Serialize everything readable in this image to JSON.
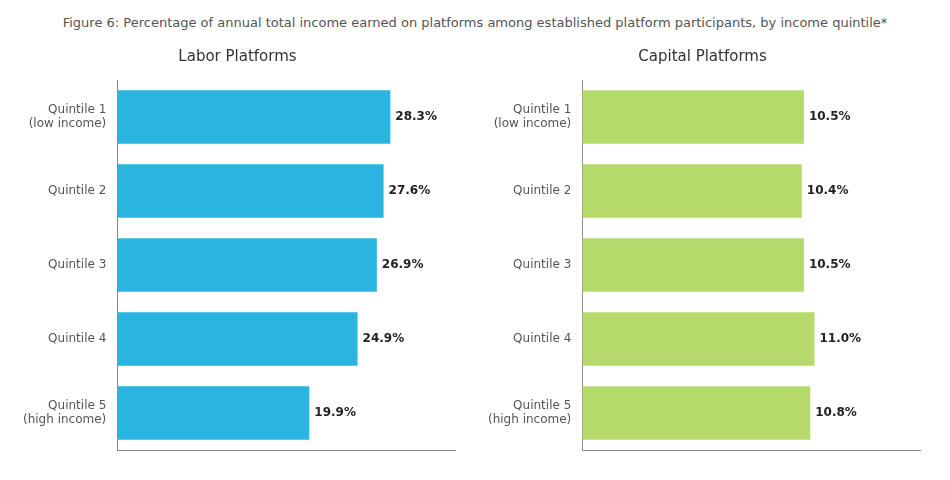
{
  "title": "Figure 6: Percentage of annual total income earned on platforms among established platform participants, by income quintile*",
  "chart_data": [
    {
      "type": "bar",
      "orientation": "horizontal",
      "title": "Labor Platforms",
      "categories": [
        "Quintile 1\n(low income)",
        "Quintile 2",
        "Quintile 3",
        "Quintile 4",
        "Quintile 5\n(high income)"
      ],
      "values": [
        28.3,
        27.6,
        26.9,
        24.9,
        19.9
      ],
      "value_labels": [
        "28.3%",
        "27.6%",
        "26.9%",
        "24.9%",
        "19.9%"
      ],
      "data_labels": true,
      "color": "#29b5e0",
      "xlim": [
        0,
        35
      ],
      "tick_labels": "y",
      "grid": false
    },
    {
      "type": "bar",
      "orientation": "horizontal",
      "title": "Capital Platforms",
      "categories": [
        "Quintile 1\n(low income)",
        "Quintile 2",
        "Quintile 3",
        "Quintile 4",
        "Quintile 5\n(high income)"
      ],
      "values": [
        10.5,
        10.4,
        10.5,
        11.0,
        10.8
      ],
      "value_labels": [
        "10.5%",
        "10.4%",
        "10.5%",
        "11.0%",
        "10.8%"
      ],
      "data_labels": true,
      "color": "#b5d96b",
      "xlim": [
        0,
        16
      ],
      "tick_labels": "y",
      "grid": false
    }
  ]
}
